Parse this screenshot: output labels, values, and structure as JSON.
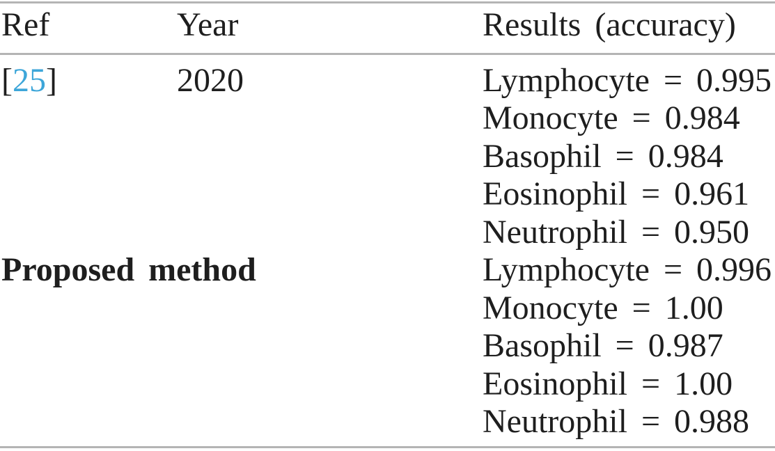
{
  "table": {
    "headers": [
      {
        "label": "Ref"
      },
      {
        "label": "Year"
      },
      {
        "label": "Results (accuracy)"
      }
    ],
    "rows": [
      {
        "ref_open": "[",
        "ref_citation": "25",
        "ref_close": "]",
        "year": "2020",
        "results": [
          "Lymphocyte = 0.995",
          "Monocyte = 0.984",
          "Basophil = 0.984",
          "Eosinophil = 0.961",
          "Neutrophil = 0.950"
        ]
      },
      {
        "method": "Proposed method",
        "results": [
          "Lymphocyte = 0.996",
          "Monocyte = 1.00",
          "Basophil = 0.987",
          "Eosinophil = 1.00",
          "Neutrophil = 0.988"
        ]
      }
    ],
    "colors": {
      "citation_blue": "#3da6d9",
      "rule_gray": "#b4b4b4",
      "text": "#1e1e1e"
    }
  }
}
